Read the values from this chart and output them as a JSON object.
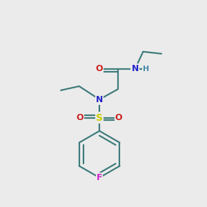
{
  "background_color": "#ebebeb",
  "atom_colors": {
    "C": "#000000",
    "N": "#2222cc",
    "O": "#cc2222",
    "S": "#cccc00",
    "F": "#cc22cc",
    "H": "#4488aa"
  },
  "bond_color": "#3d7a7a",
  "bond_width": 1.6,
  "figsize": [
    3.0,
    3.0
  ],
  "dpi": 100,
  "xlim": [
    0,
    10
  ],
  "ylim": [
    0,
    10
  ]
}
